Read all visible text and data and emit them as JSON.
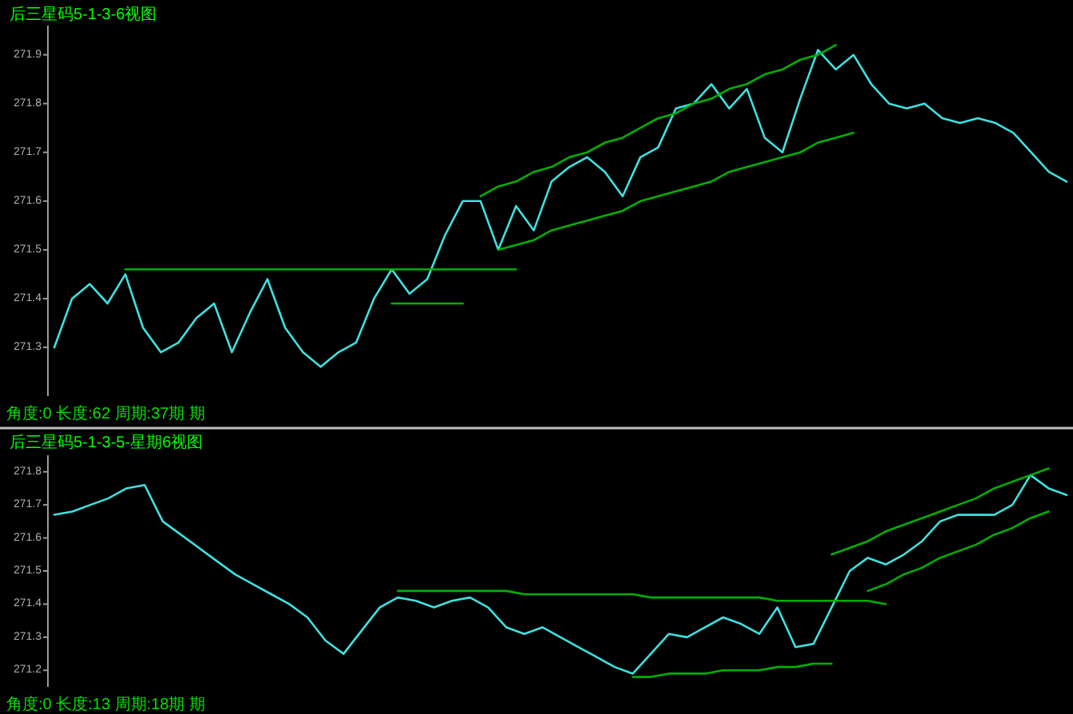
{
  "chart_data": [
    {
      "type": "line",
      "title": "后三星码5-1-3-6视图",
      "annotations": [
        "角度:0 长度:62 周期:37期 期"
      ],
      "ylim": [
        271.2,
        271.96
      ],
      "yticks": [
        271.3,
        271.4,
        271.5,
        271.6,
        271.7,
        271.8,
        271.9
      ],
      "tick_labels": "y",
      "categories": [
        null,
        null,
        null,
        null,
        null,
        null,
        null,
        null,
        null,
        null,
        null,
        null,
        null,
        null,
        null,
        null,
        null,
        null,
        null,
        null,
        null,
        null,
        null,
        null,
        null,
        null,
        null,
        null,
        null,
        null,
        null,
        null,
        null,
        null,
        null,
        null,
        null,
        null,
        null,
        null,
        null,
        null,
        null,
        null,
        null,
        null,
        null,
        null,
        null,
        null,
        null,
        null,
        null,
        null,
        null,
        null,
        null,
        null
      ],
      "series": [
        {
          "color": "#40e0e0",
          "values": [
            271.3,
            271.4,
            271.43,
            271.39,
            271.45,
            271.34,
            271.29,
            271.31,
            271.36,
            271.39,
            271.29,
            271.37,
            271.44,
            271.34,
            271.29,
            271.26,
            271.29,
            271.31,
            271.4,
            271.46,
            271.41,
            271.44,
            271.53,
            271.6,
            271.6,
            271.5,
            271.59,
            271.54,
            271.64,
            271.67,
            271.69,
            271.66,
            271.61,
            271.69,
            271.71,
            271.79,
            271.8,
            271.84,
            271.79,
            271.83,
            271.73,
            271.7,
            271.81,
            271.91,
            271.87,
            271.9,
            271.84,
            271.8,
            271.79,
            271.8,
            271.77,
            271.76,
            271.77,
            271.76,
            271.74,
            271.7,
            271.66,
            271.64
          ]
        },
        {
          "type": "line",
          "color": "#00b000",
          "values": [
            null,
            null,
            null,
            null,
            271.46,
            271.46,
            271.46,
            271.46,
            271.46,
            271.46,
            271.46,
            271.46,
            271.46,
            271.46,
            271.46,
            271.46,
            271.46,
            271.46,
            271.46,
            271.46,
            271.46,
            271.46,
            271.46,
            271.46,
            271.46,
            271.46,
            271.46,
            null,
            null,
            null,
            null,
            null,
            null,
            null,
            null,
            null,
            null,
            null,
            null,
            null,
            null,
            null,
            null,
            null,
            null,
            null,
            null,
            null,
            null,
            null,
            null,
            null,
            null,
            null,
            null,
            null,
            null,
            null
          ]
        },
        {
          "type": "line",
          "color": "#00b000",
          "values": [
            null,
            null,
            null,
            null,
            null,
            null,
            null,
            null,
            null,
            null,
            null,
            null,
            null,
            null,
            null,
            null,
            null,
            null,
            null,
            null,
            null,
            null,
            null,
            null,
            271.61,
            271.63,
            271.64,
            271.66,
            271.67,
            271.69,
            271.7,
            271.72,
            271.73,
            271.75,
            271.77,
            271.78,
            271.8,
            271.81,
            271.83,
            271.84,
            271.86,
            271.87,
            271.89,
            271.9,
            271.92,
            null,
            null,
            null,
            null,
            null,
            null,
            null,
            null,
            null,
            null,
            null,
            null,
            null
          ]
        },
        {
          "type": "line",
          "color": "#00b000",
          "values": [
            null,
            null,
            null,
            null,
            null,
            null,
            null,
            null,
            null,
            null,
            null,
            null,
            null,
            null,
            null,
            null,
            null,
            null,
            null,
            null,
            null,
            null,
            null,
            null,
            null,
            271.5,
            271.51,
            271.52,
            271.54,
            271.55,
            271.56,
            271.57,
            271.58,
            271.6,
            271.61,
            271.62,
            271.63,
            271.64,
            271.66,
            271.67,
            271.68,
            271.69,
            271.7,
            271.72,
            271.73,
            271.74,
            null,
            null,
            null,
            null,
            null,
            null,
            null,
            null,
            null,
            null,
            null,
            null
          ]
        },
        {
          "type": "line",
          "color": "#00b000",
          "values": [
            null,
            null,
            null,
            null,
            null,
            null,
            null,
            null,
            null,
            null,
            null,
            null,
            null,
            null,
            null,
            null,
            null,
            null,
            null,
            271.39,
            271.39,
            271.39,
            271.39,
            271.39,
            null,
            null,
            null,
            null,
            null,
            null,
            null,
            null,
            null,
            null,
            null,
            null,
            null,
            null,
            null,
            null,
            null,
            null,
            null,
            null,
            null,
            null,
            null,
            null,
            null,
            null,
            null,
            null,
            null,
            null,
            null,
            null,
            null,
            null
          ]
        }
      ]
    },
    {
      "type": "line",
      "title": "后三星码5-1-3-5-星期6视图",
      "annotations": [
        "角度:0 长度:13 周期:18期 期"
      ],
      "ylim": [
        271.15,
        271.85
      ],
      "yticks": [
        271.2,
        271.3,
        271.4,
        271.5,
        271.6,
        271.7,
        271.8
      ],
      "tick_labels": "y",
      "categories": [
        null,
        null,
        null,
        null,
        null,
        null,
        null,
        null,
        null,
        null,
        null,
        null,
        null,
        null,
        null,
        null,
        null,
        null,
        null,
        null,
        null,
        null,
        null,
        null,
        null,
        null,
        null,
        null,
        null,
        null,
        null,
        null,
        null,
        null,
        null,
        null,
        null,
        null,
        null,
        null,
        null,
        null,
        null,
        null,
        null,
        null,
        null,
        null,
        null,
        null,
        null,
        null,
        null,
        null,
        null,
        null,
        null
      ],
      "series": [
        {
          "color": "#40e0e0",
          "values": [
            271.67,
            271.68,
            271.7,
            271.72,
            271.75,
            271.76,
            271.65,
            271.61,
            271.57,
            271.53,
            271.49,
            271.46,
            271.43,
            271.4,
            271.36,
            271.29,
            271.25,
            271.32,
            271.39,
            271.42,
            271.41,
            271.39,
            271.41,
            271.42,
            271.39,
            271.33,
            271.31,
            271.33,
            271.3,
            271.27,
            271.24,
            271.21,
            271.19,
            271.25,
            271.31,
            271.3,
            271.33,
            271.36,
            271.34,
            271.31,
            271.39,
            271.27,
            271.28,
            271.39,
            271.5,
            271.54,
            271.52,
            271.55,
            271.59,
            271.65,
            271.67,
            271.67,
            271.67,
            271.7,
            271.79,
            271.75,
            271.73
          ]
        },
        {
          "type": "line",
          "color": "#00b000",
          "values": [
            null,
            null,
            null,
            null,
            null,
            null,
            null,
            null,
            null,
            null,
            null,
            null,
            null,
            null,
            null,
            null,
            null,
            null,
            null,
            271.44,
            271.44,
            271.44,
            271.44,
            271.44,
            271.44,
            271.44,
            271.43,
            271.43,
            271.43,
            271.43,
            271.43,
            271.43,
            271.43,
            271.42,
            271.42,
            271.42,
            271.42,
            271.42,
            271.42,
            271.42,
            271.41,
            271.41,
            271.41,
            271.41,
            271.41,
            271.41,
            271.4,
            null,
            null,
            null,
            null,
            null,
            null,
            null,
            null,
            null,
            null
          ]
        },
        {
          "type": "line",
          "color": "#00b000",
          "values": [
            null,
            null,
            null,
            null,
            null,
            null,
            null,
            null,
            null,
            null,
            null,
            null,
            null,
            null,
            null,
            null,
            null,
            null,
            null,
            null,
            null,
            null,
            null,
            null,
            null,
            null,
            null,
            null,
            null,
            null,
            null,
            null,
            271.18,
            271.18,
            271.19,
            271.19,
            271.19,
            271.2,
            271.2,
            271.2,
            271.21,
            271.21,
            271.22,
            271.22,
            null,
            null,
            null,
            null,
            null,
            null,
            null,
            null,
            null,
            null,
            null,
            null,
            null
          ]
        },
        {
          "type": "line",
          "color": "#00b000",
          "values": [
            null,
            null,
            null,
            null,
            null,
            null,
            null,
            null,
            null,
            null,
            null,
            null,
            null,
            null,
            null,
            null,
            null,
            null,
            null,
            null,
            null,
            null,
            null,
            null,
            null,
            null,
            null,
            null,
            null,
            null,
            null,
            null,
            null,
            null,
            null,
            null,
            null,
            null,
            null,
            null,
            null,
            null,
            null,
            271.55,
            271.57,
            271.59,
            271.62,
            271.64,
            271.66,
            271.68,
            271.7,
            271.72,
            271.75,
            271.77,
            271.79,
            271.81,
            null
          ]
        },
        {
          "type": "line",
          "color": "#00b000",
          "values": [
            null,
            null,
            null,
            null,
            null,
            null,
            null,
            null,
            null,
            null,
            null,
            null,
            null,
            null,
            null,
            null,
            null,
            null,
            null,
            null,
            null,
            null,
            null,
            null,
            null,
            null,
            null,
            null,
            null,
            null,
            null,
            null,
            null,
            null,
            null,
            null,
            null,
            null,
            null,
            null,
            null,
            null,
            null,
            null,
            null,
            271.44,
            271.46,
            271.49,
            271.51,
            271.54,
            271.56,
            271.58,
            271.61,
            271.63,
            271.66,
            271.68,
            null
          ]
        }
      ]
    }
  ]
}
